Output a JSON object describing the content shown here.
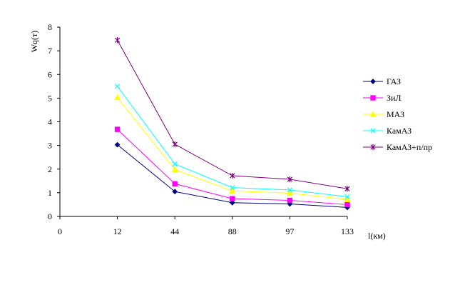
{
  "chart_data": {
    "type": "line",
    "ylabel": "Wq(т)",
    "xlabel": "l(км)",
    "ylim": [
      0,
      8
    ],
    "yticks": [
      "0",
      "1",
      "2",
      "3",
      "4",
      "5",
      "6",
      "7",
      "8"
    ],
    "categories": [
      "0",
      "12",
      "44",
      "88",
      "97",
      "133"
    ],
    "grid": false,
    "legend_position": "right",
    "series": [
      {
        "name": "ГАЗ",
        "color": "#000080",
        "marker": "diamond",
        "values": [
          null,
          3.03,
          1.05,
          0.58,
          0.53,
          0.38
        ]
      },
      {
        "name": "ЗиЛ",
        "color": "#ff00ff",
        "marker": "square",
        "values": [
          null,
          3.68,
          1.38,
          0.75,
          0.68,
          0.5
        ]
      },
      {
        "name": "МАЗ",
        "color": "#ffff00",
        "marker": "triangle",
        "values": [
          null,
          5.03,
          1.98,
          1.08,
          0.98,
          0.72
        ]
      },
      {
        "name": "КамАЗ",
        "color": "#00ffff",
        "marker": "x",
        "values": [
          null,
          5.5,
          2.22,
          1.22,
          1.12,
          0.83
        ]
      },
      {
        "name": "КамАЗ+п/пр",
        "color": "#800080",
        "marker": "star",
        "values": [
          null,
          7.45,
          3.05,
          1.72,
          1.57,
          1.17
        ]
      }
    ]
  }
}
